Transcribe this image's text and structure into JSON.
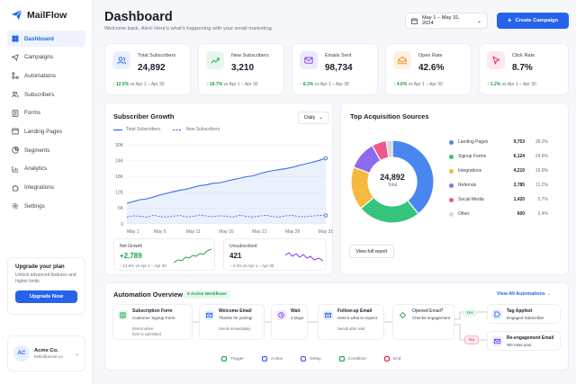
{
  "app": {
    "name": "MailFlow"
  },
  "sidebar": {
    "items": [
      {
        "label": "Dashboard",
        "icon": "grid-icon",
        "active": true
      },
      {
        "label": "Campaigns",
        "icon": "send-icon"
      },
      {
        "label": "Automations",
        "icon": "flow-icon"
      },
      {
        "label": "Subscribers",
        "icon": "users-icon"
      },
      {
        "label": "Forms",
        "icon": "form-icon"
      },
      {
        "label": "Landing Pages",
        "icon": "page-icon"
      },
      {
        "label": "Segments",
        "icon": "pie-icon"
      },
      {
        "label": "Analytics",
        "icon": "chart-icon"
      },
      {
        "label": "Integrations",
        "icon": "puzzle-icon"
      },
      {
        "label": "Settings",
        "icon": "gear-icon"
      }
    ],
    "upgrade": {
      "title": "Upgrade your plan",
      "desc": "Unlock advanced features and higher limits.",
      "button": "Upgrade Now"
    },
    "account": {
      "initials": "AC",
      "name": "Acme Co.",
      "email": "hello@acme.co"
    }
  },
  "header": {
    "title": "Dashboard",
    "subtitle": "Welcome back, Alex! Here's what's happening with your email marketing.",
    "date_range": "May 1 – May 31, 2024",
    "create_label": "Create Campaign"
  },
  "stats": [
    {
      "label": "Total Subscribers",
      "value": "24,892",
      "change": "↑ 12.5%",
      "period": "vs Apr 1 – Apr 30",
      "color": "#2563eb",
      "bg": "#e8effd",
      "icon": "users-icon"
    },
    {
      "label": "New Subscribers",
      "value": "3,210",
      "change": "↑ 18.7%",
      "period": "vs Apr 1 – Apr 30",
      "color": "#16a34a",
      "bg": "#e6f6ec",
      "icon": "trend-up-icon"
    },
    {
      "label": "Emails Sent",
      "value": "98,734",
      "change": "↑ 8.3%",
      "period": "vs Apr 1 – Apr 30",
      "color": "#7c3aed",
      "bg": "#efe9fd",
      "icon": "mail-icon"
    },
    {
      "label": "Open Rate",
      "value": "42.6%",
      "change": "↑ 4.6%",
      "period": "vs Apr 1 – Apr 30",
      "color": "#ea8a0c",
      "bg": "#fdf1e1",
      "icon": "open-mail-icon"
    },
    {
      "label": "Click Rate",
      "value": "8.7%",
      "change": "↑ 1.2%",
      "period": "vs Apr 1 – Apr 30",
      "color": "#e11d48",
      "bg": "#fde8ee",
      "icon": "cursor-icon"
    }
  ],
  "growth": {
    "title": "Subscriber Growth",
    "period": "Daily",
    "net_growth": {
      "label": "Net Growth",
      "value": "+2,789",
      "change": "↑ 12.6% vs Apr 1 – Apr 30"
    },
    "unsubscribed": {
      "label": "Unsubscribed",
      "value": "421",
      "change": "↓ 4.3% vs Apr 1 – Apr 30"
    }
  },
  "sources": {
    "title": "Top Acquisition Sources",
    "total": "24,892",
    "total_label": "Total",
    "view_label": "View full report",
    "items": [
      {
        "name": "Landing Pages",
        "count": "9,753",
        "pct": "39.2%",
        "color": "#4a86f0"
      },
      {
        "name": "Signup Forms",
        "count": "6,124",
        "pct": "24.6%",
        "color": "#34c47c"
      },
      {
        "name": "Integrations",
        "count": "4,210",
        "pct": "16.9%",
        "color": "#f5b93d"
      },
      {
        "name": "Referrals",
        "count": "2,785",
        "pct": "11.2%",
        "color": "#8b6cf0"
      },
      {
        "name": "Social Media",
        "count": "1,420",
        "pct": "5.7%",
        "color": "#f0578c"
      },
      {
        "name": "Other",
        "count": "600",
        "pct": "2.4%",
        "color": "#d5d8e0"
      }
    ]
  },
  "automation": {
    "title": "Automation Overview",
    "badge": "5 Active Workflows",
    "view_all": "View All Automations →",
    "nodes": {
      "trigger": {
        "title": "Subscription Form",
        "sub": "Customer Signup Form",
        "desc1": "Enters when",
        "desc2": "form is submitted"
      },
      "welcome": {
        "title": "Welcome Email",
        "sub": "Thanks for joining!",
        "desc": "Sends immediately"
      },
      "wait": {
        "title": "Wait",
        "sub": "2 Days"
      },
      "followup": {
        "title": "Follow-up Email",
        "sub": "Here's what to expect",
        "desc": "Sends after wait"
      },
      "condition": {
        "title": "Opened Email?",
        "sub": "Checks engagement"
      },
      "tag": {
        "title": "Tag Applied",
        "sub": "Engaged Subscriber"
      },
      "reengage": {
        "title": "Re-engagement Email",
        "sub": "We miss you!"
      },
      "yes": "Yes",
      "no": "No"
    },
    "legend": [
      {
        "label": "Trigger",
        "color": "#16a34a"
      },
      {
        "label": "Action",
        "color": "#2563eb"
      },
      {
        "label": "Delay",
        "color": "#7c3aed"
      },
      {
        "label": "Condition",
        "color": "#16a34a"
      },
      {
        "label": "End",
        "color": "#e11d48"
      }
    ]
  },
  "chart_data": {
    "type": "line",
    "title": "Subscriber Growth",
    "series": [
      {
        "name": "Total Subscribers",
        "values": [
          7800,
          8500,
          9200,
          9500,
          10200,
          11000,
          11600,
          12200,
          12800,
          13200,
          13900,
          14500,
          14800,
          15400,
          15600,
          16200,
          16800,
          17300,
          17900,
          18200,
          19000,
          19700,
          20200,
          20600,
          21000,
          21500,
          22200,
          22800,
          23400,
          24100,
          24892
        ]
      },
      {
        "name": "New Subscribers",
        "values": [
          2600,
          3100,
          2900,
          2600,
          3300,
          2800,
          2600,
          3000,
          3200,
          2700,
          2800,
          3400,
          3000,
          2700,
          3100,
          2900,
          2600,
          3300,
          2900,
          2600,
          3000,
          3300,
          2800,
          2600,
          3100,
          3200,
          2800,
          2700,
          3000,
          3200,
          3210
        ]
      }
    ],
    "x_ticks": [
      "May 1",
      "May 6",
      "May 11",
      "May 16",
      "May 21",
      "May 26",
      "May 31"
    ],
    "y_ticks": [
      "0",
      "6K",
      "12K",
      "18K",
      "24K",
      "30K"
    ],
    "ylim": [
      0,
      30000
    ]
  }
}
